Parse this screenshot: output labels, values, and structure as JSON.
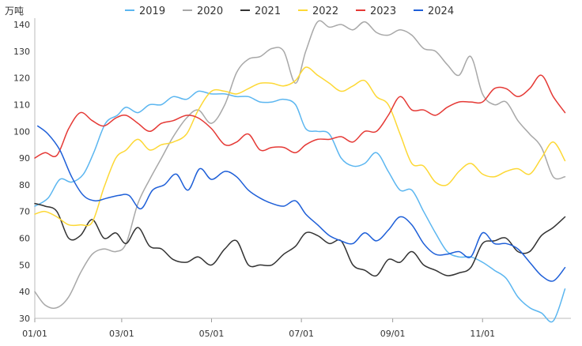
{
  "chart_data": {
    "type": "line",
    "title": "",
    "unit_label": "万吨",
    "xlabel": "",
    "ylabel": "",
    "ylim": [
      30,
      140
    ],
    "yticks": [
      30,
      40,
      50,
      60,
      70,
      80,
      90,
      100,
      110,
      120,
      130,
      140
    ],
    "xlim": [
      "01/01",
      "12/31"
    ],
    "xticks": [
      {
        "date": "01/01",
        "label": "01/01"
      },
      {
        "date": "03/01",
        "label": "03/01"
      },
      {
        "date": "05/01",
        "label": "05/01"
      },
      {
        "date": "07/01",
        "label": "07/01"
      },
      {
        "date": "09/01",
        "label": "09/01"
      },
      {
        "date": "11/01",
        "label": "11/01"
      }
    ],
    "grid": false,
    "legend_position": "top-center",
    "series": [
      {
        "name": "2019",
        "color": "#5bb6f0",
        "points": [
          [
            "01/01",
            72
          ],
          [
            "01/10",
            75
          ],
          [
            "01/18",
            82
          ],
          [
            "01/26",
            81
          ],
          [
            "02/03",
            84
          ],
          [
            "02/10",
            92
          ],
          [
            "02/18",
            103
          ],
          [
            "02/26",
            106
          ],
          [
            "03/04",
            109
          ],
          [
            "03/12",
            107
          ],
          [
            "03/20",
            110
          ],
          [
            "03/28",
            110
          ],
          [
            "04/05",
            113
          ],
          [
            "04/14",
            112
          ],
          [
            "04/22",
            115
          ],
          [
            "05/01",
            114
          ],
          [
            "05/10",
            114
          ],
          [
            "05/18",
            113
          ],
          [
            "05/26",
            113
          ],
          [
            "06/03",
            111
          ],
          [
            "06/11",
            111
          ],
          [
            "06/19",
            112
          ],
          [
            "06/27",
            110
          ],
          [
            "07/04",
            101
          ],
          [
            "07/12",
            100
          ],
          [
            "07/20",
            99
          ],
          [
            "07/28",
            90
          ],
          [
            "08/05",
            87
          ],
          [
            "08/13",
            88
          ],
          [
            "08/21",
            92
          ],
          [
            "08/29",
            85
          ],
          [
            "09/06",
            78
          ],
          [
            "09/14",
            78
          ],
          [
            "09/22",
            70
          ],
          [
            "09/30",
            62
          ],
          [
            "10/08",
            55
          ],
          [
            "10/16",
            53
          ],
          [
            "10/24",
            53
          ],
          [
            "11/01",
            51
          ],
          [
            "11/09",
            48
          ],
          [
            "11/17",
            45
          ],
          [
            "11/25",
            38
          ],
          [
            "12/03",
            34
          ],
          [
            "12/11",
            32
          ],
          [
            "12/19",
            29
          ],
          [
            "12/27",
            41
          ]
        ]
      },
      {
        "name": "2020",
        "color": "#a8a8a8",
        "points": [
          [
            "01/01",
            40
          ],
          [
            "01/08",
            35
          ],
          [
            "01/16",
            34
          ],
          [
            "01/24",
            38
          ],
          [
            "02/01",
            47
          ],
          [
            "02/09",
            54
          ],
          [
            "02/17",
            56
          ],
          [
            "02/25",
            55
          ],
          [
            "03/04",
            58
          ],
          [
            "03/12",
            73
          ],
          [
            "03/20",
            82
          ],
          [
            "03/28",
            90
          ],
          [
            "04/05",
            98
          ],
          [
            "04/14",
            105
          ],
          [
            "04/22",
            108
          ],
          [
            "05/01",
            103
          ],
          [
            "05/10",
            110
          ],
          [
            "05/18",
            122
          ],
          [
            "05/26",
            127
          ],
          [
            "06/03",
            128
          ],
          [
            "06/11",
            131
          ],
          [
            "06/19",
            130
          ],
          [
            "06/27",
            118
          ],
          [
            "07/04",
            130
          ],
          [
            "07/12",
            141
          ],
          [
            "07/20",
            139
          ],
          [
            "07/28",
            140
          ],
          [
            "08/05",
            138
          ],
          [
            "08/13",
            141
          ],
          [
            "08/21",
            137
          ],
          [
            "08/29",
            136
          ],
          [
            "09/06",
            138
          ],
          [
            "09/14",
            136
          ],
          [
            "09/22",
            131
          ],
          [
            "09/30",
            130
          ],
          [
            "10/08",
            125
          ],
          [
            "10/16",
            121
          ],
          [
            "10/24",
            128
          ],
          [
            "11/01",
            114
          ],
          [
            "11/09",
            110
          ],
          [
            "11/17",
            111
          ],
          [
            "11/25",
            104
          ],
          [
            "12/03",
            99
          ],
          [
            "12/11",
            94
          ],
          [
            "12/19",
            83
          ],
          [
            "12/27",
            83
          ]
        ]
      },
      {
        "name": "2021",
        "color": "#333333",
        "points": [
          [
            "01/01",
            73
          ],
          [
            "01/08",
            72
          ],
          [
            "01/16",
            70
          ],
          [
            "01/24",
            60
          ],
          [
            "02/01",
            61
          ],
          [
            "02/09",
            67
          ],
          [
            "02/17",
            60
          ],
          [
            "02/25",
            62
          ],
          [
            "03/04",
            58
          ],
          [
            "03/12",
            64
          ],
          [
            "03/20",
            57
          ],
          [
            "03/28",
            56
          ],
          [
            "04/05",
            52
          ],
          [
            "04/14",
            51
          ],
          [
            "04/22",
            53
          ],
          [
            "05/01",
            50
          ],
          [
            "05/10",
            56
          ],
          [
            "05/18",
            59
          ],
          [
            "05/26",
            50
          ],
          [
            "06/03",
            50
          ],
          [
            "06/11",
            50
          ],
          [
            "06/19",
            54
          ],
          [
            "06/27",
            57
          ],
          [
            "07/04",
            62
          ],
          [
            "07/12",
            61
          ],
          [
            "07/20",
            58
          ],
          [
            "07/28",
            59
          ],
          [
            "08/05",
            50
          ],
          [
            "08/13",
            48
          ],
          [
            "08/21",
            46
          ],
          [
            "08/29",
            52
          ],
          [
            "09/06",
            51
          ],
          [
            "09/14",
            55
          ],
          [
            "09/22",
            50
          ],
          [
            "09/30",
            48
          ],
          [
            "10/08",
            46
          ],
          [
            "10/16",
            47
          ],
          [
            "10/24",
            49
          ],
          [
            "11/01",
            58
          ],
          [
            "11/09",
            59
          ],
          [
            "11/17",
            60
          ],
          [
            "11/25",
            55
          ],
          [
            "12/03",
            55
          ],
          [
            "12/11",
            61
          ],
          [
            "12/19",
            64
          ],
          [
            "12/27",
            68
          ]
        ]
      },
      {
        "name": "2022",
        "color": "#fdd835",
        "points": [
          [
            "01/01",
            69
          ],
          [
            "01/08",
            70
          ],
          [
            "01/16",
            68
          ],
          [
            "01/24",
            65
          ],
          [
            "02/01",
            65
          ],
          [
            "02/09",
            66
          ],
          [
            "02/17",
            79
          ],
          [
            "02/25",
            90
          ],
          [
            "03/04",
            93
          ],
          [
            "03/12",
            97
          ],
          [
            "03/20",
            93
          ],
          [
            "03/28",
            95
          ],
          [
            "04/05",
            96
          ],
          [
            "04/14",
            99
          ],
          [
            "04/22",
            108
          ],
          [
            "05/01",
            115
          ],
          [
            "05/10",
            115
          ],
          [
            "05/18",
            114
          ],
          [
            "05/26",
            116
          ],
          [
            "06/03",
            118
          ],
          [
            "06/11",
            118
          ],
          [
            "06/19",
            117
          ],
          [
            "06/27",
            119
          ],
          [
            "07/04",
            124
          ],
          [
            "07/12",
            121
          ],
          [
            "07/20",
            118
          ],
          [
            "07/28",
            115
          ],
          [
            "08/05",
            117
          ],
          [
            "08/13",
            119
          ],
          [
            "08/21",
            113
          ],
          [
            "08/29",
            110
          ],
          [
            "09/06",
            99
          ],
          [
            "09/14",
            88
          ],
          [
            "09/22",
            87
          ],
          [
            "09/30",
            81
          ],
          [
            "10/08",
            80
          ],
          [
            "10/16",
            85
          ],
          [
            "10/24",
            88
          ],
          [
            "11/01",
            84
          ],
          [
            "11/09",
            83
          ],
          [
            "11/17",
            85
          ],
          [
            "11/25",
            86
          ],
          [
            "12/03",
            84
          ],
          [
            "12/11",
            90
          ],
          [
            "12/19",
            96
          ],
          [
            "12/27",
            89
          ]
        ]
      },
      {
        "name": "2023",
        "color": "#e53935",
        "points": [
          [
            "01/01",
            90
          ],
          [
            "01/08",
            92
          ],
          [
            "01/16",
            91
          ],
          [
            "01/24",
            101
          ],
          [
            "02/01",
            107
          ],
          [
            "02/09",
            104
          ],
          [
            "02/17",
            102
          ],
          [
            "02/25",
            105
          ],
          [
            "03/04",
            106
          ],
          [
            "03/12",
            103
          ],
          [
            "03/20",
            100
          ],
          [
            "03/28",
            103
          ],
          [
            "04/05",
            104
          ],
          [
            "04/14",
            106
          ],
          [
            "04/22",
            105
          ],
          [
            "05/01",
            101
          ],
          [
            "05/10",
            95
          ],
          [
            "05/18",
            96
          ],
          [
            "05/26",
            99
          ],
          [
            "06/03",
            93
          ],
          [
            "06/11",
            94
          ],
          [
            "06/19",
            94
          ],
          [
            "06/27",
            92
          ],
          [
            "07/04",
            95
          ],
          [
            "07/12",
            97
          ],
          [
            "07/20",
            97
          ],
          [
            "07/28",
            98
          ],
          [
            "08/05",
            96
          ],
          [
            "08/13",
            100
          ],
          [
            "08/21",
            100
          ],
          [
            "08/29",
            106
          ],
          [
            "09/06",
            113
          ],
          [
            "09/14",
            108
          ],
          [
            "09/22",
            108
          ],
          [
            "09/30",
            106
          ],
          [
            "10/08",
            109
          ],
          [
            "10/16",
            111
          ],
          [
            "10/24",
            111
          ],
          [
            "11/01",
            111
          ],
          [
            "11/09",
            116
          ],
          [
            "11/17",
            116
          ],
          [
            "11/25",
            113
          ],
          [
            "12/03",
            116
          ],
          [
            "12/11",
            121
          ],
          [
            "12/19",
            113
          ],
          [
            "12/27",
            107
          ]
        ]
      },
      {
        "name": "2024",
        "color": "#1e5fd8",
        "points": [
          [
            "01/03",
            102
          ],
          [
            "01/10",
            99
          ],
          [
            "01/18",
            93
          ],
          [
            "01/26",
            83
          ],
          [
            "02/03",
            76
          ],
          [
            "02/11",
            74
          ],
          [
            "02/19",
            75
          ],
          [
            "02/27",
            76
          ],
          [
            "03/06",
            76
          ],
          [
            "03/14",
            71
          ],
          [
            "03/22",
            78
          ],
          [
            "03/30",
            80
          ],
          [
            "04/07",
            84
          ],
          [
            "04/15",
            78
          ],
          [
            "04/23",
            86
          ],
          [
            "05/01",
            82
          ],
          [
            "05/10",
            85
          ],
          [
            "05/18",
            83
          ],
          [
            "05/26",
            78
          ],
          [
            "06/03",
            75
          ],
          [
            "06/11",
            73
          ],
          [
            "06/19",
            72
          ],
          [
            "06/27",
            74
          ],
          [
            "07/04",
            69
          ],
          [
            "07/12",
            65
          ],
          [
            "07/20",
            61
          ],
          [
            "07/28",
            59
          ],
          [
            "08/05",
            58
          ],
          [
            "08/13",
            62
          ],
          [
            "08/21",
            59
          ],
          [
            "08/29",
            63
          ],
          [
            "09/06",
            68
          ],
          [
            "09/14",
            65
          ],
          [
            "09/22",
            58
          ],
          [
            "09/30",
            54
          ],
          [
            "10/08",
            54
          ],
          [
            "10/16",
            55
          ],
          [
            "10/24",
            53
          ],
          [
            "11/01",
            62
          ],
          [
            "11/09",
            58
          ],
          [
            "11/17",
            58
          ],
          [
            "11/25",
            56
          ],
          [
            "12/03",
            51
          ],
          [
            "12/11",
            46
          ],
          [
            "12/19",
            44
          ],
          [
            "12/27",
            49
          ]
        ]
      }
    ]
  }
}
